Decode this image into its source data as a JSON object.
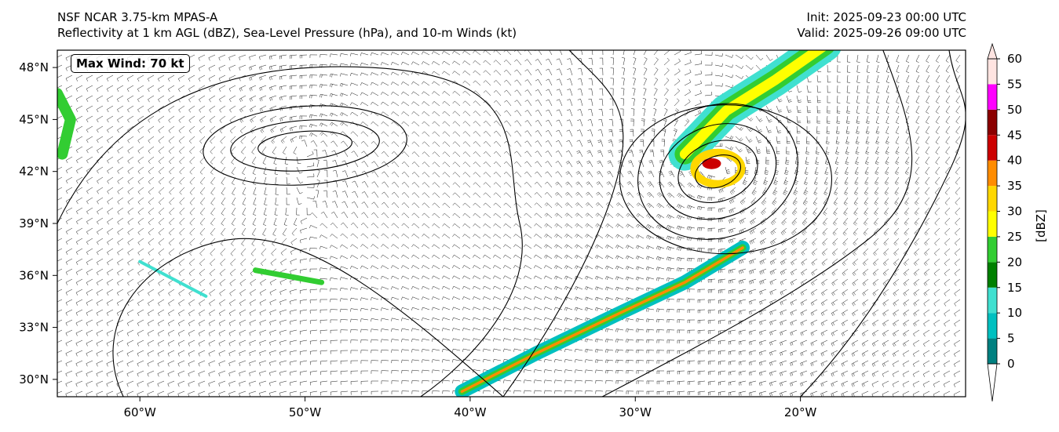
{
  "header": {
    "model": "NSF NCAR 3.75-km MPAS-A",
    "fields": "Reflectivity at 1 km AGL (dBZ), Sea-Level Pressure (hPa), and 10-m Winds (kt)",
    "init": "Init: 2025-09-23 00:00 UTC",
    "valid": "Valid: 2025-09-26 09:00 UTC"
  },
  "annotation": {
    "max_wind": "Max Wind: 70 kt"
  },
  "map": {
    "lon_range": [
      -65,
      -10
    ],
    "lat_range": [
      29,
      49
    ],
    "lon_ticks": [
      {
        "value": -60,
        "label": "60°W"
      },
      {
        "value": -50,
        "label": "50°W"
      },
      {
        "value": -40,
        "label": "40°W"
      },
      {
        "value": -30,
        "label": "30°W"
      },
      {
        "value": -20,
        "label": "20°W"
      }
    ],
    "lat_ticks": [
      {
        "value": 30,
        "label": "30°N"
      },
      {
        "value": 33,
        "label": "33°N"
      },
      {
        "value": 36,
        "label": "36°N"
      },
      {
        "value": 39,
        "label": "39°N"
      },
      {
        "value": 42,
        "label": "42°N"
      },
      {
        "value": 45,
        "label": "45°N"
      },
      {
        "value": 48,
        "label": "48°N"
      }
    ],
    "cyclone_center": {
      "lon": -25,
      "lat": 42
    },
    "high_center": {
      "lon": -50,
      "lat": 43.5
    }
  },
  "colorbar": {
    "label": "[dBZ]",
    "ticks": [
      "0",
      "5",
      "10",
      "15",
      "20",
      "25",
      "30",
      "35",
      "40",
      "45",
      "50",
      "55",
      "60"
    ],
    "colors": [
      "#008080",
      "#00c0c0",
      "#40e0d0",
      "#008000",
      "#32cd32",
      "#ffff00",
      "#ffd700",
      "#ff8c00",
      "#cc0000",
      "#8b0000",
      "#ff00ff",
      "#ffe4e1"
    ]
  }
}
